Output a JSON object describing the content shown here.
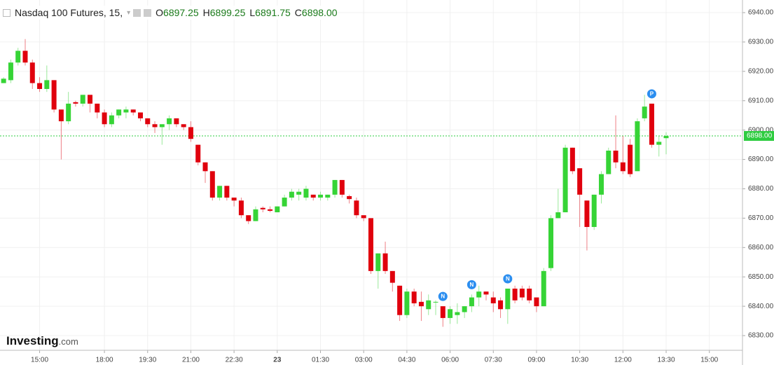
{
  "header": {
    "title": "Nasdaq 100 Futures, 15,",
    "ohlc": [
      {
        "key": "O",
        "text": "6897.25"
      },
      {
        "key": "H",
        "text": "6899.25"
      },
      {
        "key": "L",
        "text": "6891.75"
      },
      {
        "key": "C",
        "text": "6898.00"
      }
    ]
  },
  "logo": {
    "name": "Investing",
    "suffix": ".com"
  },
  "chart_data": {
    "type": "candlestick",
    "up_color": "#36d436",
    "down_color": "#e0000d",
    "xlim": [
      -0.5,
      102.6
    ],
    "ylim": [
      6825,
      6944.3
    ],
    "xticks": [
      {
        "value": 5,
        "label": "15:00"
      },
      {
        "value": 14,
        "label": "18:00"
      },
      {
        "value": 20,
        "label": "19:30"
      },
      {
        "value": 26,
        "label": "21:00"
      },
      {
        "value": 32,
        "label": "22:30"
      },
      {
        "value": 38,
        "label": "23"
      },
      {
        "value": 44,
        "label": "01:30"
      },
      {
        "value": 50,
        "label": "03:00"
      },
      {
        "value": 56,
        "label": "04:30"
      },
      {
        "value": 62,
        "label": "06:00"
      },
      {
        "value": 68,
        "label": "07:30"
      },
      {
        "value": 74,
        "label": "09:00"
      },
      {
        "value": 80,
        "label": "10:30"
      },
      {
        "value": 86,
        "label": "12:00"
      },
      {
        "value": 92,
        "label": "13:30"
      },
      {
        "value": 98,
        "label": "15:00"
      }
    ],
    "yticks": [
      {
        "value": 6830,
        "label": "6830.00"
      },
      {
        "value": 6840,
        "label": "6840.00"
      },
      {
        "value": 6850,
        "label": "6850.00"
      },
      {
        "value": 6860,
        "label": "6860.00"
      },
      {
        "value": 6870,
        "label": "6870.00"
      },
      {
        "value": 6880,
        "label": "6880.00"
      },
      {
        "value": 6890,
        "label": "6890.00"
      },
      {
        "value": 6900,
        "label": "6900.00"
      },
      {
        "value": 6910,
        "label": "6910.00"
      },
      {
        "value": 6920,
        "label": "6920.00"
      },
      {
        "value": 6930,
        "label": "6930.00"
      },
      {
        "value": 6940,
        "label": "6940.00"
      }
    ],
    "grid": true,
    "last_price": {
      "value": 6898,
      "label": "6898.00",
      "color": "#2ecc40"
    },
    "events": [
      {
        "index": 61,
        "label": "N"
      },
      {
        "index": 65,
        "label": "N"
      },
      {
        "index": 70,
        "label": "N"
      },
      {
        "index": 90,
        "label": "P"
      }
    ],
    "open": [
      6916,
      6917,
      6923,
      6927,
      6923,
      6916,
      6914,
      6917,
      6907,
      6903,
      6909.5,
      6909,
      6912,
      6909,
      6906,
      6902,
      6905,
      6906,
      6907,
      6906,
      6904,
      6902,
      6901,
      6902,
      6904,
      6902,
      6901,
      6895,
      6889,
      6886,
      6877,
      6881,
      6877,
      6876,
      6871,
      6869,
      6873.5,
      6873,
      6872,
      6874,
      6877,
      6878,
      6877,
      6878,
      6877,
      6877,
      6878,
      6883,
      6877.5,
      6876,
      6871,
      6870,
      6852,
      6858,
      6852,
      6847,
      6837,
      6845,
      6841.5,
      6839,
      6841.5,
      6840,
      6836,
      6837,
      6838,
      6840,
      6843,
      6845,
      6843,
      6842,
      6839,
      6846,
      6846,
      6846,
      6843,
      6840,
      6853,
      6870,
      6872,
      6894,
      6887,
      6876,
      6867,
      6878,
      6885,
      6893,
      6889,
      6895,
      6886,
      6904,
      6909,
      6895,
      6897.25
    ],
    "high": [
      6918,
      6924,
      6928,
      6931,
      6924,
      6918,
      6922,
      6917,
      6907,
      6913,
      6910,
      6912,
      6912,
      6909,
      6907,
      6906,
      6907,
      6908,
      6907,
      6906,
      6904,
      6903,
      6902,
      6905,
      6904,
      6902,
      6903,
      6895,
      6889,
      6886,
      6881,
      6881,
      6877,
      6877,
      6871,
      6874,
      6874,
      6874,
      6874,
      6878,
      6880,
      6880,
      6881,
      6878,
      6879,
      6878,
      6883,
      6883,
      6878,
      6877,
      6871,
      6870,
      6858,
      6862,
      6852,
      6847,
      6846,
      6846,
      6845,
      6844,
      6842,
      6840,
      6840,
      6841,
      6840,
      6844,
      6847,
      6845,
      6845,
      6843,
      6846,
      6847,
      6847,
      6847,
      6843,
      6853,
      6871,
      6880,
      6895,
      6894,
      6887,
      6876,
      6878,
      6886,
      6894,
      6905,
      6898,
      6897,
      6904,
      6912,
      6909,
      6898,
      6899.25
    ],
    "low": [
      6916,
      6916,
      6922,
      6922,
      6914,
      6913,
      6913,
      6906,
      6890,
      6902,
      6908,
      6908,
      6906,
      6904,
      6901,
      6901,
      6904,
      6904,
      6905,
      6903,
      6901,
      6899,
      6895,
      6900,
      6901,
      6900,
      6896,
      6888,
      6882,
      6876,
      6876,
      6876,
      6874,
      6870,
      6868,
      6869,
      6872,
      6872,
      6872,
      6874,
      6876,
      6876,
      6876,
      6876,
      6876,
      6876,
      6877,
      6877,
      6875,
      6870,
      6869,
      6851,
      6846,
      6851,
      6845,
      6835,
      6836,
      6840,
      6835,
      6837,
      6837,
      6833,
      6834,
      6834,
      6836,
      6838,
      6840,
      6842,
      6838,
      6836,
      6834,
      6841,
      6842,
      6841,
      6838,
      6840,
      6852,
      6870,
      6872,
      6885,
      6867,
      6859,
      6866,
      6875,
      6885,
      6887,
      6885,
      6884,
      6886,
      6903,
      6894,
      6891,
      6891.75
    ],
    "close": [
      6917.5,
      6923,
      6927,
      6923,
      6916,
      6914,
      6917,
      6907,
      6903,
      6909,
      6909,
      6912,
      6909,
      6906,
      6902,
      6905,
      6907,
      6907,
      6906,
      6904,
      6902,
      6901,
      6902,
      6904,
      6902,
      6901,
      6897,
      6889,
      6886,
      6877,
      6881,
      6877,
      6876,
      6871,
      6869,
      6873,
      6873,
      6872.5,
      6874,
      6877,
      6879,
      6879,
      6880,
      6877,
      6878,
      6878,
      6883,
      6878,
      6876.5,
      6871,
      6870,
      6852,
      6858,
      6852,
      6848,
      6837,
      6845,
      6841,
      6840,
      6842,
      6841.5,
      6836,
      6839,
      6838,
      6840,
      6843,
      6845,
      6844,
      6841,
      6839,
      6846,
      6842,
      6843,
      6842,
      6840,
      6852,
      6870,
      6872,
      6894,
      6886,
      6878,
      6867,
      6878,
      6885,
      6893,
      6889,
      6886,
      6885,
      6903,
      6908,
      6895,
      6896,
      6898
    ]
  }
}
